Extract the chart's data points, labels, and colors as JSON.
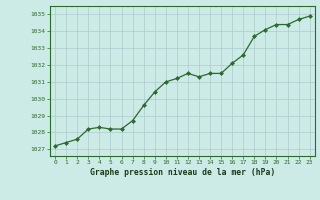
{
  "x": [
    0,
    1,
    2,
    3,
    4,
    5,
    6,
    7,
    8,
    9,
    10,
    11,
    12,
    13,
    14,
    15,
    16,
    17,
    18,
    19,
    20,
    21,
    22,
    23
  ],
  "y": [
    1027.2,
    1027.4,
    1027.6,
    1028.2,
    1028.3,
    1028.2,
    1028.2,
    1028.7,
    1029.6,
    1030.4,
    1031.0,
    1031.2,
    1031.5,
    1031.3,
    1031.5,
    1031.5,
    1032.1,
    1032.6,
    1033.7,
    1034.1,
    1034.4,
    1034.4,
    1034.7,
    1034.9
  ],
  "line_color": "#2d6a2d",
  "marker_color": "#2d6a2d",
  "bg_color": "#cceae6",
  "grid_color": "#aacccc",
  "xlabel": "Graphe pression niveau de la mer (hPa)",
  "xlabel_color": "#1a3a1a",
  "ylabel_ticks": [
    1027,
    1028,
    1029,
    1030,
    1031,
    1032,
    1033,
    1034,
    1035
  ],
  "ylim": [
    1026.6,
    1035.5
  ],
  "xlim": [
    -0.5,
    23.5
  ],
  "tick_color": "#2d6a2d",
  "axis_color": "#2d6a2d",
  "grid_linewidth": 0.5,
  "title_color": "#1a3a1a"
}
